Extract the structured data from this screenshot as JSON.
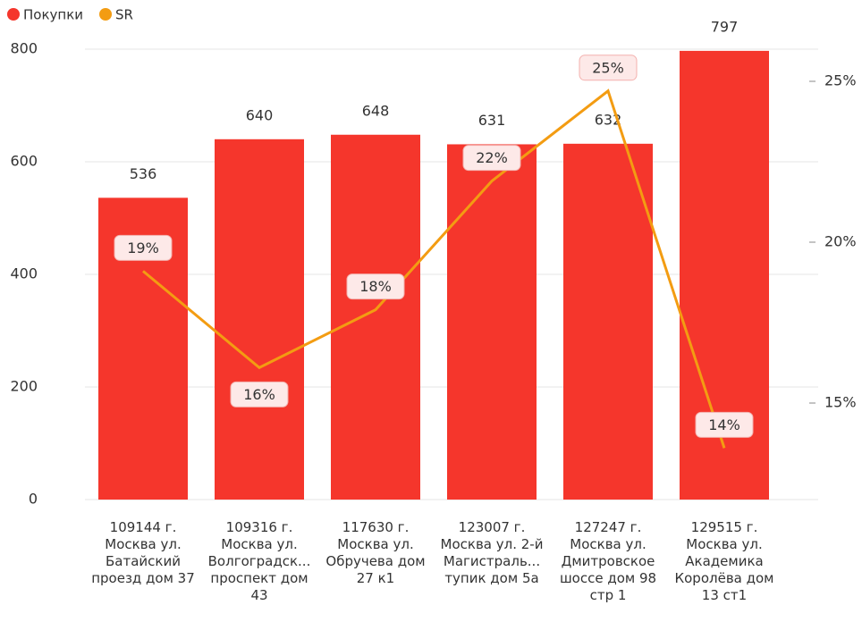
{
  "chart_data": {
    "type": "bar_line",
    "categories": [
      "109144 г.\nМосква ул.\nБатайский\nпроезд дом 37",
      "109316 г.\nМосква ул.\nВолгоградск...\nпроспект дом\n43",
      "117630 г.\nМосква ул.\nОбручева дом\n27 к1",
      "123007 г.\nМосква ул. 2-й\nМагистраль...\nтупик дом 5а",
      "127247 г.\nМосква ул.\nДмитровское\nшоссе дом 98\nстр 1",
      "129515 г.\nМосква ул.\nАкадемика\nКоролёва дом\n13 ст1"
    ],
    "series": [
      {
        "name": "Покупки",
        "color": "#f5362c",
        "values": [
          536,
          640,
          648,
          631,
          632,
          797
        ]
      },
      {
        "name": "SR",
        "color": "#f39c12",
        "axis": "y2",
        "values": [
          19.1,
          16.1,
          17.9,
          21.9,
          24.7,
          13.6
        ],
        "value_labels": [
          "19%",
          "16%",
          "18%",
          "22%",
          "25%",
          "14%"
        ]
      }
    ],
    "ylim": [
      0,
      800
    ],
    "yticks": [
      0,
      200,
      400,
      600,
      800
    ],
    "y2lim": [
      12,
      26
    ],
    "y2ticks": [
      {
        "value": 15,
        "label": "15%"
      },
      {
        "value": 20,
        "label": "20%"
      },
      {
        "value": 25,
        "label": "25%"
      }
    ],
    "grid": true,
    "legend": "top-left"
  }
}
